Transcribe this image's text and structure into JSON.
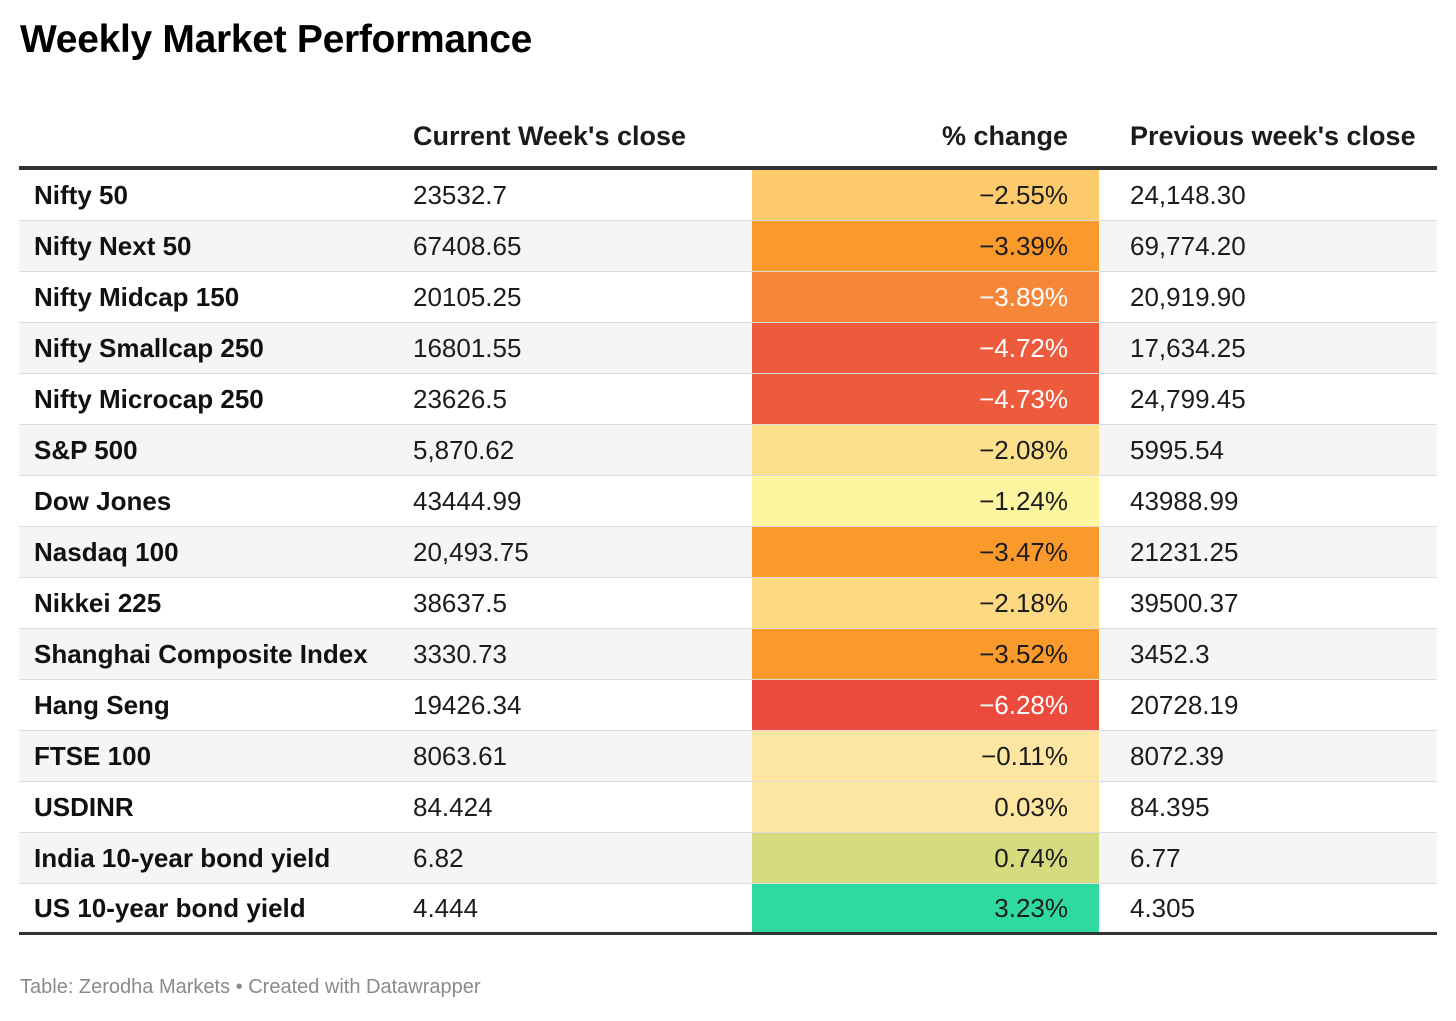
{
  "title": "Weekly Market Performance",
  "footer": "Table: Zerodha Markets • Created with Datawrapper",
  "chart_data": {
    "type": "table",
    "title": "Weekly Market Performance",
    "columns": [
      "",
      "Current Week's close",
      "% change",
      "Previous week's close"
    ],
    "rows": [
      {
        "name": "Nifty 50",
        "current": "23532.7",
        "change": "−2.55%",
        "previous": "24,148.30",
        "color": "#fdcb6b",
        "text_color": "#1c1c1c"
      },
      {
        "name": "Nifty Next 50",
        "current": "67408.65",
        "change": "−3.39%",
        "previous": "69,774.20",
        "color": "#fa9a2c",
        "text_color": "#1c1c1c"
      },
      {
        "name": "Nifty Midcap 150",
        "current": "20105.25",
        "change": "−3.89%",
        "previous": "20,919.90",
        "color": "#f6873a",
        "text_color": "#ffffff"
      },
      {
        "name": "Nifty Smallcap 250",
        "current": "16801.55",
        "change": "−4.72%",
        "previous": "17,634.25",
        "color": "#ee5a3c",
        "text_color": "#ffffff"
      },
      {
        "name": "Nifty Microcap 250",
        "current": "23626.5",
        "change": "−4.73%",
        "previous": "24,799.45",
        "color": "#ee5a3c",
        "text_color": "#ffffff"
      },
      {
        "name": "S&P 500",
        "current": "5,870.62",
        "change": "−2.08%",
        "previous": "5995.54",
        "color": "#fde08c",
        "text_color": "#1c1c1c"
      },
      {
        "name": "Dow Jones",
        "current": "43444.99",
        "change": "−1.24%",
        "previous": "43988.99",
        "color": "#fdf59f",
        "text_color": "#1c1c1c"
      },
      {
        "name": "Nasdaq 100",
        "current": "20,493.75",
        "change": "−3.47%",
        "previous": "21231.25",
        "color": "#fa9a2c",
        "text_color": "#1c1c1c"
      },
      {
        "name": "Nikkei 225",
        "current": "38637.5",
        "change": "−2.18%",
        "previous": "39500.37",
        "color": "#fdda82",
        "text_color": "#1c1c1c"
      },
      {
        "name": "Shanghai Composite Index",
        "current": "3330.73",
        "change": "−3.52%",
        "previous": "3452.3",
        "color": "#fa9a2c",
        "text_color": "#1c1c1c"
      },
      {
        "name": "Hang Seng",
        "current": "19426.34",
        "change": "−6.28%",
        "previous": "20728.19",
        "color": "#ec4a3c",
        "text_color": "#ffffff"
      },
      {
        "name": "FTSE 100",
        "current": "8063.61",
        "change": "−0.11%",
        "previous": "8072.39",
        "color": "#fde6a2",
        "text_color": "#1c1c1c"
      },
      {
        "name": "USDINR",
        "current": "84.424",
        "change": "0.03%",
        "previous": "84.395",
        "color": "#fde6a2",
        "text_color": "#1c1c1c"
      },
      {
        "name": "India 10-year bond yield",
        "current": "6.82",
        "change": "0.74%",
        "previous": "6.77",
        "color": "#d6db80",
        "text_color": "#1c1c1c"
      },
      {
        "name": "US 10-year bond yield",
        "current": "4.444",
        "change": "3.23%",
        "previous": "4.305",
        "color": "#2fdaa1",
        "text_color": "#1c1c1c"
      }
    ]
  }
}
